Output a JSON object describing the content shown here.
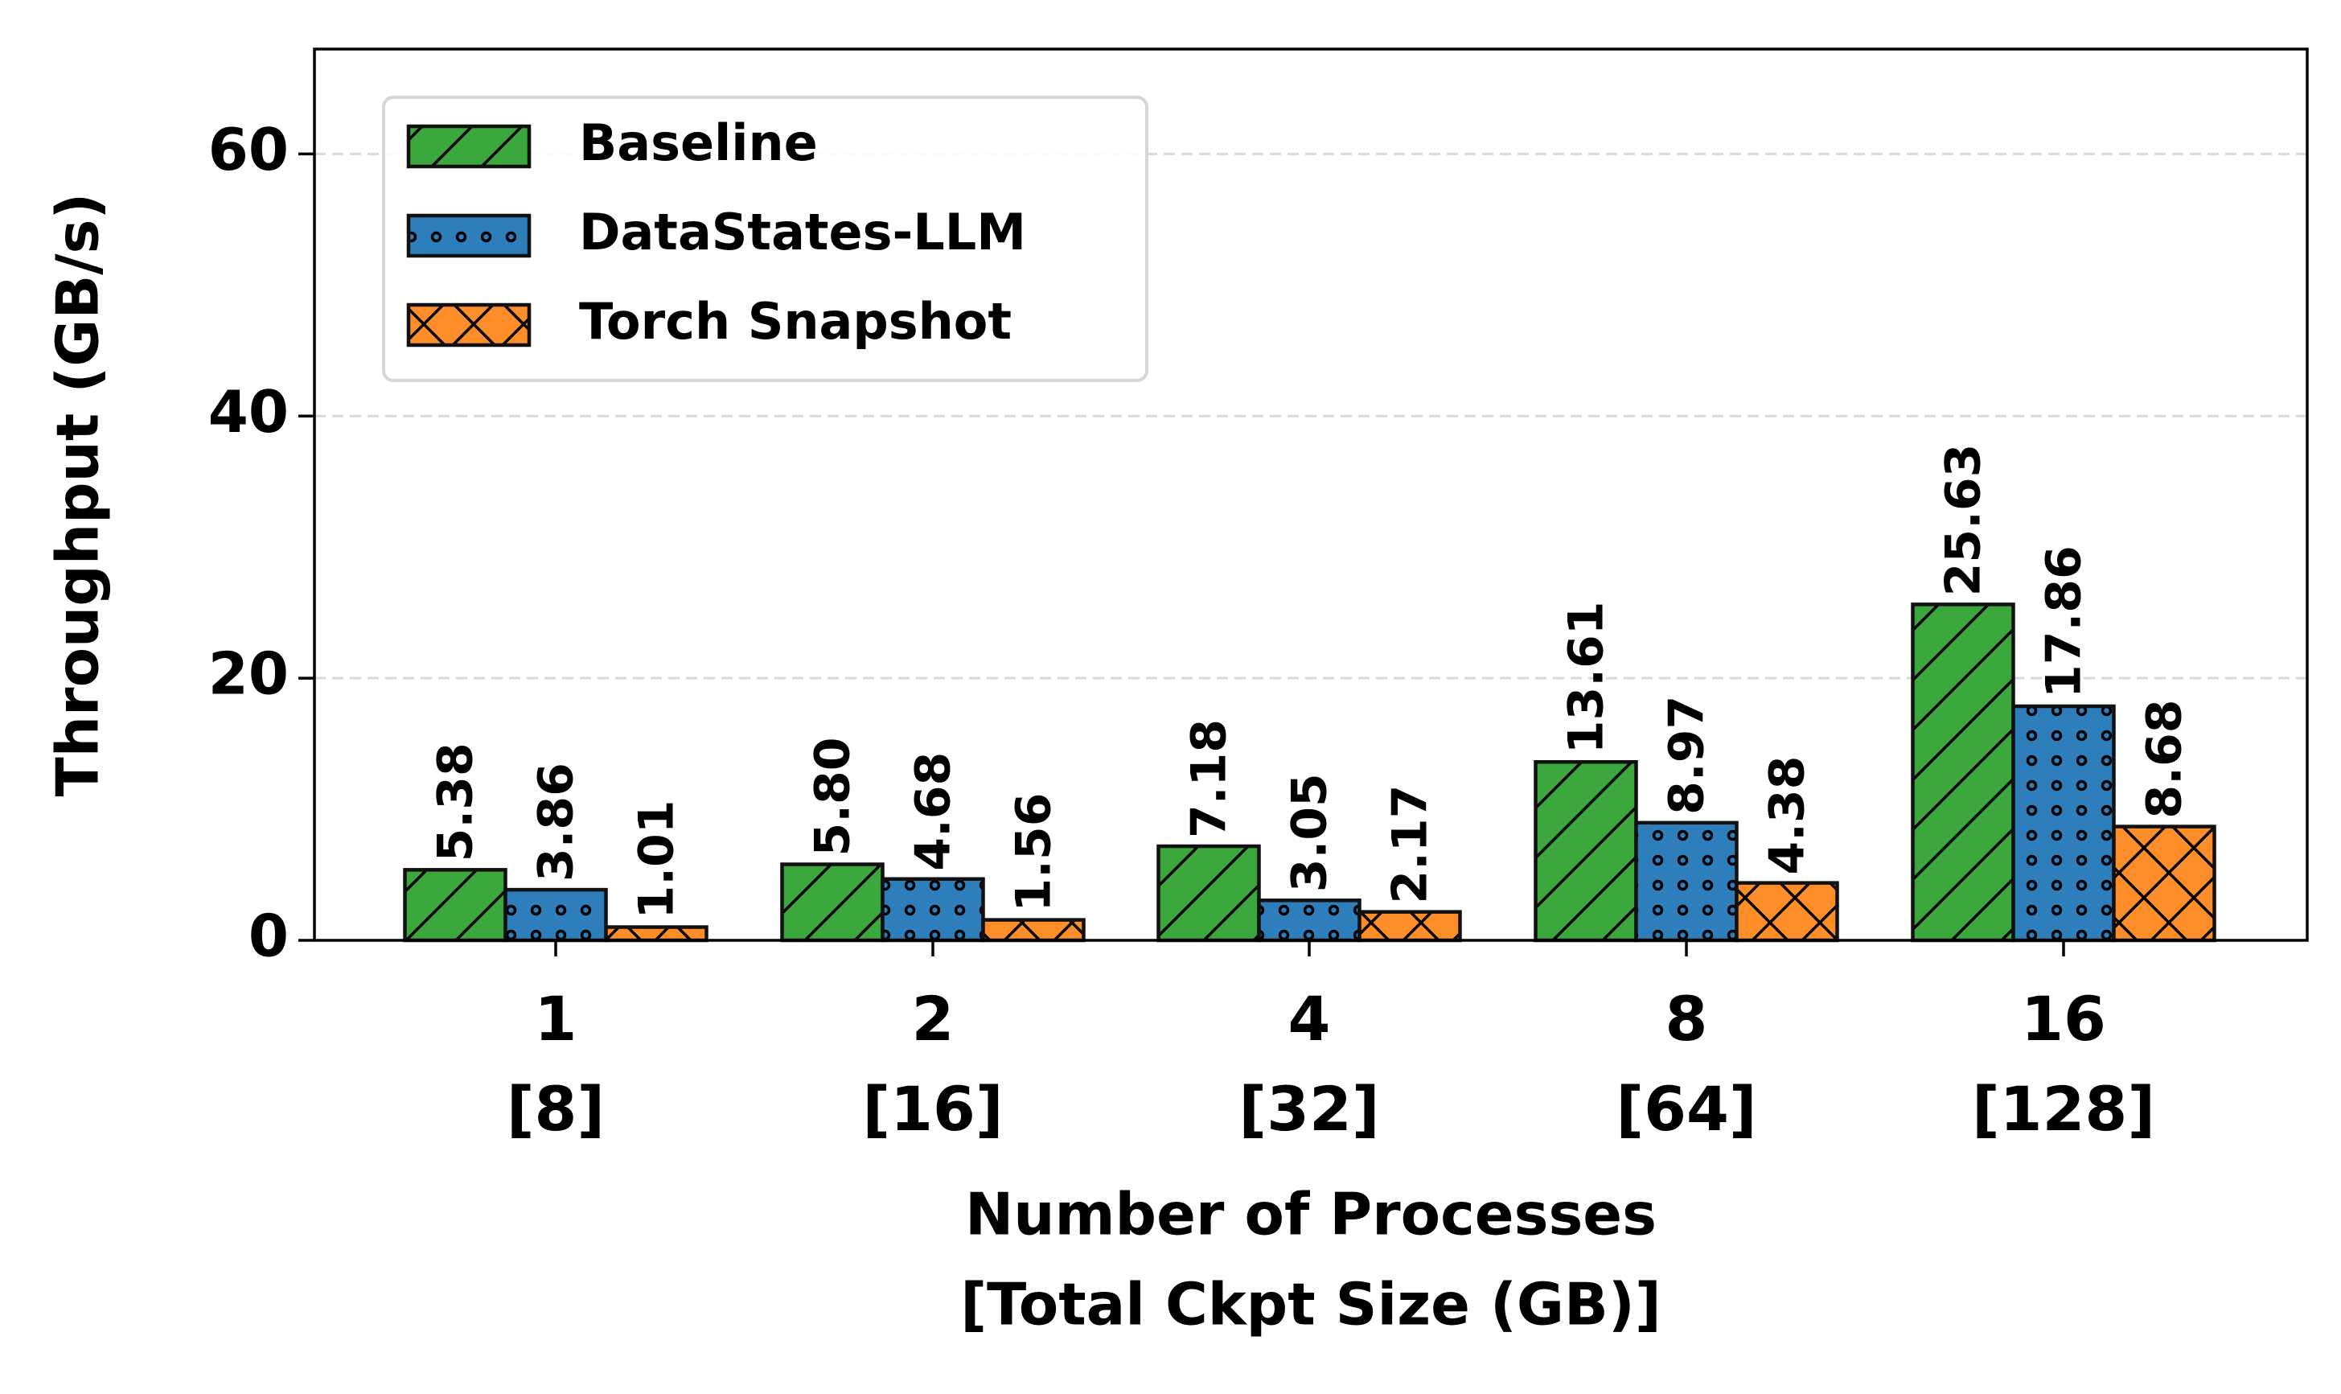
{
  "chart_data": {
    "type": "bar",
    "title": "",
    "xlabel": "Number of Processes",
    "xlabel_line2": "[Total Ckpt Size (GB)]",
    "ylabel": "Throughput (GB/s)",
    "ylim": [
      0,
      68
    ],
    "yticks": [
      "0",
      "20",
      "40",
      "60"
    ],
    "ytick_values": [
      0,
      20,
      40,
      60
    ],
    "grid": "horizontal dashed",
    "legend_position": "top-left",
    "categories": [
      "1",
      "2",
      "4",
      "8",
      "16"
    ],
    "categories_line2": [
      "[8]",
      "[16]",
      "[32]",
      "[64]",
      "[128]"
    ],
    "series": [
      {
        "name": "Baseline",
        "color": "#3ba63b",
        "hatch": "diagonal",
        "values": [
          5.38,
          5.8,
          7.18,
          13.61,
          25.63
        ],
        "labels": [
          "5.38",
          "5.80",
          "7.18",
          "13.61",
          "25.63"
        ]
      },
      {
        "name": "DataStates-LLM",
        "color": "#2f7ebc",
        "hatch": "dots",
        "values": [
          3.86,
          4.68,
          3.05,
          8.97,
          17.86
        ],
        "labels": [
          "3.86",
          "4.68",
          "3.05",
          "8.97",
          "17.86"
        ]
      },
      {
        "name": "Torch Snapshot",
        "color": "#fd8d28",
        "hatch": "cross",
        "values": [
          1.01,
          1.56,
          2.17,
          4.38,
          8.68
        ],
        "labels": [
          "1.01",
          "1.56",
          "2.17",
          "4.38",
          "8.68"
        ]
      }
    ]
  }
}
